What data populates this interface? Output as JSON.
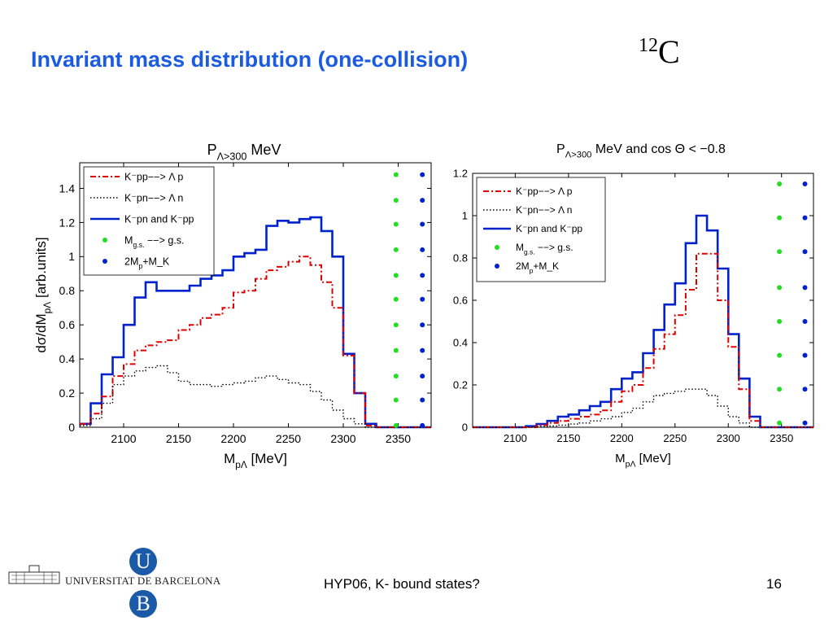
{
  "slide": {
    "title": "Invariant mass distribution (one-collision)",
    "element_mass_number": "12",
    "element_symbol": "C",
    "footer": "HYP06, K- bound states?",
    "page_number": "16",
    "university": "UNIVERSITAT DE BARCELONA",
    "seal_letters": [
      "U",
      "B"
    ]
  },
  "chart_data": [
    {
      "type": "line",
      "title": "P_Λ>300 MeV",
      "xlabel": "M_pΛ [MeV]",
      "ylabel": "dσ/dM_pΛ [arb.units]",
      "xlim": [
        2060,
        2380
      ],
      "ylim": [
        0,
        1.55
      ],
      "xticks": [
        2100,
        2150,
        2200,
        2250,
        2300,
        2350
      ],
      "yticks": [
        0,
        0.2,
        0.4,
        0.6,
        0.8,
        1,
        1.2,
        1.4
      ],
      "grid": false,
      "legend_position": "top-left",
      "legend": [
        {
          "label": "K⁻pp−−> Λ p",
          "style": "dash-dot",
          "color": "#e00000"
        },
        {
          "label": "K⁻pn−−> Λ n",
          "style": "dotted",
          "color": "#000000"
        },
        {
          "label": "K⁻pn and K⁻pp",
          "style": "solid",
          "color": "#0022cc"
        },
        {
          "label": "M_g.s. −−> g.s.",
          "style": "marker",
          "color": "#22dd22"
        },
        {
          "label": "2M_p+M_K",
          "style": "marker",
          "color": "#0022cc"
        }
      ],
      "series": [
        {
          "name": "K⁻pn and K⁻pp",
          "style": "solid",
          "color": "#0022cc",
          "x": [
            2060,
            2070,
            2080,
            2090,
            2100,
            2110,
            2120,
            2130,
            2140,
            2150,
            2160,
            2170,
            2180,
            2190,
            2200,
            2210,
            2220,
            2230,
            2240,
            2250,
            2260,
            2270,
            2280,
            2290,
            2300,
            2310,
            2320,
            2330,
            2340,
            2350,
            2360,
            2370,
            2380
          ],
          "y": [
            0.02,
            0.14,
            0.31,
            0.41,
            0.6,
            0.76,
            0.85,
            0.8,
            0.8,
            0.8,
            0.83,
            0.87,
            0.89,
            0.92,
            1.0,
            1.02,
            1.04,
            1.18,
            1.21,
            1.2,
            1.22,
            1.23,
            1.15,
            1.0,
            0.43,
            0.2,
            0.02,
            0,
            0,
            0,
            0,
            0,
            0
          ]
        },
        {
          "name": "K⁻pp−−> Λ p",
          "style": "dash-dot",
          "color": "#e00000",
          "x": [
            2060,
            2070,
            2080,
            2090,
            2100,
            2110,
            2120,
            2130,
            2140,
            2150,
            2160,
            2170,
            2180,
            2190,
            2200,
            2210,
            2220,
            2230,
            2240,
            2250,
            2260,
            2270,
            2280,
            2290,
            2300,
            2310,
            2320,
            2330,
            2340,
            2350,
            2360,
            2370,
            2380
          ],
          "y": [
            0.02,
            0.08,
            0.18,
            0.3,
            0.37,
            0.45,
            0.48,
            0.5,
            0.51,
            0.57,
            0.6,
            0.64,
            0.66,
            0.7,
            0.79,
            0.8,
            0.87,
            0.92,
            0.94,
            0.97,
            1.0,
            0.95,
            0.85,
            0.7,
            0.42,
            0.2,
            0.01,
            0,
            0,
            0,
            0,
            0,
            0
          ]
        },
        {
          "name": "K⁻pn−−> Λ n",
          "style": "dotted",
          "color": "#000000",
          "x": [
            2060,
            2070,
            2080,
            2090,
            2100,
            2110,
            2120,
            2130,
            2140,
            2150,
            2160,
            2170,
            2180,
            2190,
            2200,
            2210,
            2220,
            2230,
            2240,
            2250,
            2260,
            2270,
            2280,
            2290,
            2300,
            2310,
            2320,
            2330,
            2340,
            2350,
            2360,
            2370,
            2380
          ],
          "y": [
            0.01,
            0.05,
            0.14,
            0.25,
            0.3,
            0.33,
            0.35,
            0.36,
            0.32,
            0.27,
            0.25,
            0.25,
            0.24,
            0.25,
            0.26,
            0.27,
            0.29,
            0.3,
            0.28,
            0.26,
            0.25,
            0.21,
            0.16,
            0.1,
            0.05,
            0.02,
            0,
            0,
            0,
            0,
            0,
            0,
            0
          ]
        }
      ],
      "markers": [
        {
          "name": "M_g.s. −−> g.s.",
          "color": "#22dd22",
          "x": 2348,
          "y": [
            0.01,
            0.16,
            0.3,
            0.45,
            0.6,
            0.75,
            0.89,
            1.04,
            1.19,
            1.33,
            1.48
          ]
        },
        {
          "name": "2M_p+M_K",
          "color": "#0022cc",
          "x": 2372,
          "y": [
            0.01,
            0.16,
            0.3,
            0.45,
            0.6,
            0.75,
            0.89,
            1.04,
            1.19,
            1.33,
            1.48
          ]
        }
      ]
    },
    {
      "type": "line",
      "title": "P_Λ>300 MeV and cos Θ < −0.8",
      "xlabel": "M_pΛ [MeV]",
      "ylabel": "",
      "xlim": [
        2060,
        2380
      ],
      "ylim": [
        0,
        1.2
      ],
      "xticks": [
        2100,
        2150,
        2200,
        2250,
        2300,
        2350
      ],
      "yticks": [
        0,
        0.2,
        0.4,
        0.6,
        0.8,
        1,
        1.2
      ],
      "grid": false,
      "legend_position": "top-left",
      "legend": [
        {
          "label": "K⁻pp−−> Λ p",
          "style": "dash-dot",
          "color": "#e00000"
        },
        {
          "label": "K⁻pn−−> Λ n",
          "style": "dotted",
          "color": "#000000"
        },
        {
          "label": "K⁻pn and K⁻pp",
          "style": "solid",
          "color": "#0022cc"
        },
        {
          "label": "M_g.s. −−> g.s.",
          "style": "marker",
          "color": "#22dd22"
        },
        {
          "label": "2M_p+M_K",
          "style": "marker",
          "color": "#0022cc"
        }
      ],
      "series": [
        {
          "name": "K⁻pn and K⁻pp",
          "style": "solid",
          "color": "#0022cc",
          "x": [
            2060,
            2070,
            2080,
            2090,
            2100,
            2110,
            2120,
            2130,
            2140,
            2150,
            2160,
            2170,
            2180,
            2190,
            2200,
            2210,
            2220,
            2230,
            2240,
            2250,
            2260,
            2270,
            2280,
            2290,
            2300,
            2310,
            2320,
            2330,
            2340,
            2350,
            2360,
            2370,
            2380
          ],
          "y": [
            0,
            0,
            0,
            0,
            0,
            0.005,
            0.015,
            0.03,
            0.05,
            0.06,
            0.08,
            0.1,
            0.12,
            0.18,
            0.23,
            0.26,
            0.35,
            0.46,
            0.58,
            0.68,
            0.87,
            1.0,
            0.93,
            0.75,
            0.44,
            0.23,
            0.05,
            0,
            0,
            0,
            0,
            0,
            0
          ]
        },
        {
          "name": "K⁻pp−−> Λ p",
          "style": "dash-dot",
          "color": "#e00000",
          "x": [
            2060,
            2070,
            2080,
            2090,
            2100,
            2110,
            2120,
            2130,
            2140,
            2150,
            2160,
            2170,
            2180,
            2190,
            2200,
            2210,
            2220,
            2230,
            2240,
            2250,
            2260,
            2270,
            2280,
            2290,
            2300,
            2310,
            2320,
            2330,
            2340,
            2350,
            2360,
            2370,
            2380
          ],
          "y": [
            0,
            0,
            0,
            0,
            0,
            0,
            0.01,
            0.02,
            0.03,
            0.04,
            0.05,
            0.06,
            0.08,
            0.12,
            0.17,
            0.2,
            0.28,
            0.37,
            0.44,
            0.53,
            0.65,
            0.82,
            0.82,
            0.6,
            0.38,
            0.18,
            0.03,
            0,
            0,
            0,
            0,
            0,
            0
          ]
        },
        {
          "name": "K⁻pn−−> Λ n",
          "style": "dotted",
          "color": "#000000",
          "x": [
            2060,
            2070,
            2080,
            2090,
            2100,
            2110,
            2120,
            2130,
            2140,
            2150,
            2160,
            2170,
            2180,
            2190,
            2200,
            2210,
            2220,
            2230,
            2240,
            2250,
            2260,
            2270,
            2280,
            2290,
            2300,
            2310,
            2320,
            2330,
            2340,
            2350,
            2360,
            2370,
            2380
          ],
          "y": [
            0,
            0,
            0,
            0,
            0,
            0,
            0.003,
            0.006,
            0.01,
            0.015,
            0.02,
            0.03,
            0.04,
            0.05,
            0.07,
            0.09,
            0.12,
            0.15,
            0.16,
            0.17,
            0.18,
            0.18,
            0.15,
            0.1,
            0.05,
            0.02,
            0,
            0,
            0,
            0,
            0,
            0,
            0
          ]
        }
      ],
      "markers": [
        {
          "name": "M_g.s. −−> g.s.",
          "color": "#22dd22",
          "x": 2348,
          "y": [
            0.02,
            0.18,
            0.34,
            0.5,
            0.66,
            0.83,
            0.99,
            1.15
          ]
        },
        {
          "name": "2M_p+M_K",
          "color": "#0022cc",
          "x": 2372,
          "y": [
            0.02,
            0.18,
            0.34,
            0.5,
            0.66,
            0.83,
            0.99,
            1.15
          ]
        }
      ]
    }
  ]
}
